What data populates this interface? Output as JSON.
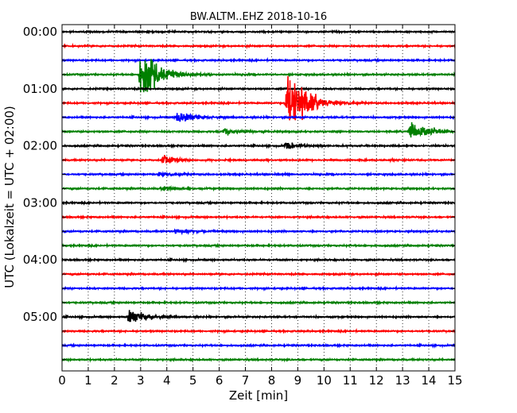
{
  "chart_data": {
    "type": "line",
    "title": "BW.ALTM..EHZ 2018-10-16",
    "xlabel": "Zeit  [min]",
    "ylabel": "UTC (Lokalzeit = UTC + 02:00)",
    "xlim": [
      0,
      15
    ],
    "x_ticks": [
      "0",
      "1",
      "2",
      "3",
      "4",
      "5",
      "6",
      "7",
      "8",
      "9",
      "10",
      "11",
      "12",
      "13",
      "14",
      "15"
    ],
    "y_tick_labels": [
      "00:00",
      "01:00",
      "02:00",
      "03:00",
      "04:00",
      "05:00"
    ],
    "y_tick_rows": [
      0,
      4,
      8,
      12,
      16,
      20
    ],
    "row_count": 24,
    "row_interval_min": 15,
    "row_colors": [
      "#000000",
      "#ff0000",
      "#0000ff",
      "#008000"
    ],
    "grid": "vertical-dotted",
    "events": [
      {
        "row": 3,
        "start_min": 2.9,
        "amplitude": 2.3
      },
      {
        "row": 5,
        "start_min": 8.5,
        "amplitude": 3.2
      },
      {
        "row": 6,
        "start_min": 4.3,
        "amplitude": 0.6
      },
      {
        "row": 7,
        "start_min": 6.1,
        "amplitude": 0.35
      },
      {
        "row": 7,
        "start_min": 13.2,
        "amplitude": 1.0
      },
      {
        "row": 8,
        "start_min": 8.45,
        "amplitude": 0.35
      },
      {
        "row": 9,
        "start_min": 3.75,
        "amplitude": 0.4
      },
      {
        "row": 10,
        "start_min": 3.6,
        "amplitude": 0.2
      },
      {
        "row": 11,
        "start_min": 3.7,
        "amplitude": 0.25
      },
      {
        "row": 14,
        "start_min": 4.25,
        "amplitude": 0.35
      },
      {
        "row": 20,
        "start_min": 2.45,
        "amplitude": 0.7
      }
    ]
  }
}
